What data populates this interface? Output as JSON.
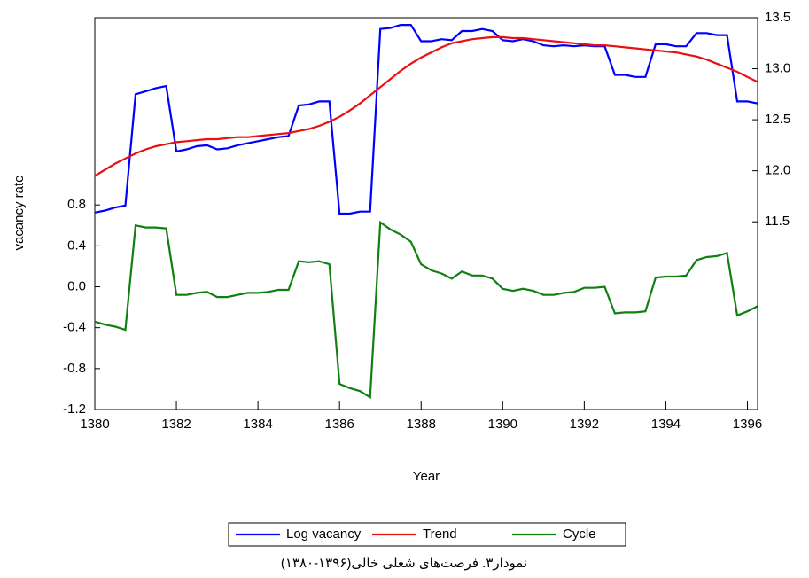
{
  "chart_data": {
    "type": "line",
    "y_label": "vacancy rate",
    "x_label": "Year",
    "caption": "نمودار۳. فرصت‌های شغلی خالی(۱۳۹۶-۱۳۸۰)",
    "x": [
      1380,
      1380.25,
      1380.5,
      1380.75,
      1381,
      1381.25,
      1381.5,
      1381.75,
      1382,
      1382.25,
      1382.5,
      1382.75,
      1383,
      1383.25,
      1383.5,
      1383.75,
      1384,
      1384.25,
      1384.5,
      1384.75,
      1385,
      1385.25,
      1385.5,
      1385.75,
      1386,
      1386.25,
      1386.5,
      1386.75,
      1387,
      1387.25,
      1387.5,
      1387.75,
      1388,
      1388.25,
      1388.5,
      1388.75,
      1389,
      1389.25,
      1389.5,
      1389.75,
      1390,
      1390.25,
      1390.5,
      1390.75,
      1391,
      1391.25,
      1391.5,
      1391.75,
      1392,
      1392.25,
      1392.5,
      1392.75,
      1393,
      1393.25,
      1393.5,
      1393.75,
      1394,
      1394.25,
      1394.5,
      1394.75,
      1395,
      1395.25,
      1395.5,
      1395.75,
      1396,
      1396.25
    ],
    "xlim": [
      1380,
      1396.25
    ],
    "xticks": [
      1380,
      1382,
      1384,
      1386,
      1388,
      1390,
      1392,
      1394,
      1396
    ],
    "ylim": [
      -1.2,
      2.63
    ],
    "yticks": [
      -1.2,
      -0.8,
      -0.4,
      {
        "value": 0,
        "label": "0.0"
      },
      0.4,
      0.8
    ],
    "y2lim": [
      9.66,
      13.5
    ],
    "y2ticks": [
      11.5,
      {
        "value": 12,
        "label": "12.0"
      },
      12.5,
      {
        "value": 13,
        "label": "13.0"
      },
      13.5
    ],
    "legend": "bottom",
    "series": [
      {
        "name": "Log vacancy",
        "color": "#0000ff",
        "axis": "y2",
        "values": [
          11.59,
          11.61,
          11.64,
          11.66,
          12.75,
          12.78,
          12.81,
          12.83,
          12.19,
          12.21,
          12.24,
          12.25,
          12.21,
          12.22,
          12.25,
          12.27,
          12.29,
          12.31,
          12.33,
          12.34,
          12.64,
          12.65,
          12.68,
          12.68,
          11.58,
          11.58,
          11.6,
          11.6,
          13.39,
          13.4,
          13.43,
          13.43,
          13.27,
          13.27,
          13.29,
          13.28,
          13.37,
          13.37,
          13.39,
          13.37,
          13.28,
          13.27,
          13.29,
          13.27,
          13.23,
          13.22,
          13.23,
          13.22,
          13.23,
          13.22,
          13.22,
          12.94,
          12.94,
          12.92,
          12.92,
          13.24,
          13.24,
          13.22,
          13.22,
          13.35,
          13.35,
          13.33,
          13.33,
          12.68,
          12.68,
          12.66
        ]
      },
      {
        "name": "Trend",
        "color": "#e81010",
        "axis": "y2",
        "values": [
          11.95,
          12.01,
          12.07,
          12.12,
          12.17,
          12.21,
          12.24,
          12.26,
          12.28,
          12.29,
          12.3,
          12.31,
          12.31,
          12.32,
          12.33,
          12.33,
          12.34,
          12.35,
          12.36,
          12.37,
          12.39,
          12.41,
          12.44,
          12.48,
          12.53,
          12.59,
          12.66,
          12.74,
          12.82,
          12.9,
          12.98,
          13.05,
          13.11,
          13.16,
          13.21,
          13.25,
          13.27,
          13.29,
          13.3,
          13.31,
          13.31,
          13.3,
          13.3,
          13.29,
          13.28,
          13.27,
          13.26,
          13.25,
          13.24,
          13.23,
          13.23,
          13.22,
          13.21,
          13.2,
          13.19,
          13.18,
          13.17,
          13.16,
          13.14,
          13.12,
          13.09,
          13.05,
          13.01,
          12.97,
          12.92,
          12.87
        ]
      },
      {
        "name": "Cycle",
        "color": "#108010",
        "values": [
          -0.34,
          -0.37,
          -0.39,
          -0.42,
          0.6,
          0.58,
          0.58,
          0.57,
          -0.08,
          -0.08,
          -0.06,
          -0.05,
          -0.1,
          -0.1,
          -0.08,
          -0.06,
          -0.06,
          -0.05,
          -0.03,
          -0.03,
          0.25,
          0.24,
          0.25,
          0.22,
          -0.95,
          -0.99,
          -1.02,
          -1.08,
          0.63,
          0.56,
          0.51,
          0.44,
          0.22,
          0.16,
          0.13,
          0.08,
          0.15,
          0.11,
          0.11,
          0.08,
          -0.02,
          -0.04,
          -0.02,
          -0.04,
          -0.08,
          -0.08,
          -0.06,
          -0.05,
          -0.01,
          -0.01,
          0.0,
          -0.26,
          -0.25,
          -0.25,
          -0.24,
          0.09,
          0.1,
          0.1,
          0.11,
          0.26,
          0.29,
          0.3,
          0.33,
          -0.28,
          -0.24,
          -0.19
        ]
      }
    ]
  }
}
